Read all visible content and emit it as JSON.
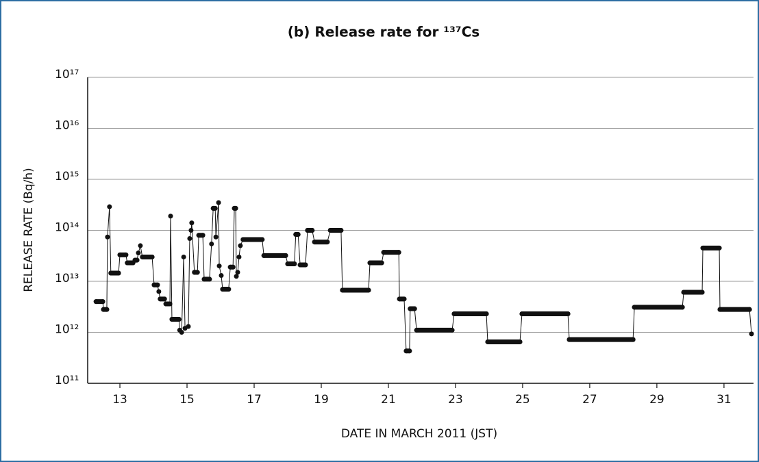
{
  "chart_data": {
    "type": "line",
    "title": "(b) Release rate for ¹³⁷Cs",
    "x_label": "DATE IN MARCH 2011 (JST)",
    "y_label": "RELEASE RATE (Bq/h)",
    "log_y": true,
    "grid": true,
    "xlim": [
      12.04,
      31.88
    ],
    "xticks": [
      13,
      15,
      17,
      19,
      21,
      23,
      25,
      27,
      29,
      31
    ],
    "ylim": [
      100000000000.0,
      1e+17
    ],
    "yticks": [
      {
        "value": 100000000000.0,
        "label": "10¹¹"
      },
      {
        "value": 1000000000000.0,
        "label": "10¹²"
      },
      {
        "value": 10000000000000.0,
        "label": "10¹³"
      },
      {
        "value": 100000000000000.0,
        "label": "10¹⁴"
      },
      {
        "value": 1000000000000000.0,
        "label": "10¹⁵"
      },
      {
        "value": 1e+16,
        "label": "10¹⁶"
      },
      {
        "value": 1e+17,
        "label": "10¹⁷"
      }
    ],
    "series": [
      {
        "color": "#111111",
        "x": [
          12.29,
          12.49,
          12.51,
          12.61,
          12.63,
          12.69,
          12.73,
          12.96,
          13.0,
          13.18,
          13.22,
          13.39,
          13.45,
          13.51,
          13.55,
          13.61,
          13.67,
          13.96,
          14.02,
          14.12,
          14.16,
          14.2,
          14.33,
          14.37,
          14.49,
          14.51,
          14.55,
          14.76,
          14.78,
          14.84,
          14.9,
          14.94,
          15.04,
          15.08,
          15.12,
          15.14,
          15.22,
          15.31,
          15.35,
          15.47,
          15.51,
          15.67,
          15.73,
          15.78,
          15.84,
          15.86,
          15.94,
          15.96,
          16.02,
          16.06,
          16.24,
          16.29,
          16.37,
          16.41,
          16.45,
          16.47,
          16.51,
          16.55,
          16.59,
          16.67,
          17.24,
          17.29,
          17.94,
          18.0,
          18.2,
          18.24,
          18.31,
          18.37,
          18.53,
          18.59,
          18.73,
          18.8,
          19.18,
          19.27,
          19.59,
          19.63,
          20.41,
          20.45,
          20.8,
          20.86,
          21.31,
          21.33,
          21.47,
          21.53,
          21.63,
          21.65,
          21.78,
          21.84,
          22.9,
          22.96,
          23.92,
          23.96,
          24.92,
          24.98,
          26.35,
          26.39,
          28.29,
          28.33,
          29.76,
          29.8,
          30.35,
          30.37,
          30.86,
          30.88,
          31.76,
          31.82
        ],
        "values": [
          4000000000000.0,
          4000000000000.0,
          2800000000000.0,
          2800000000000.0,
          74000000000000.0,
          290000000000000.0,
          14500000000000.0,
          14500000000000.0,
          33000000000000.0,
          33000000000000.0,
          23000000000000.0,
          23000000000000.0,
          26000000000000.0,
          26000000000000.0,
          36000000000000.0,
          50000000000000.0,
          30000000000000.0,
          30000000000000.0,
          8500000000000.0,
          8500000000000.0,
          6300000000000.0,
          4500000000000.0,
          4500000000000.0,
          3600000000000.0,
          3600000000000.0,
          190000000000000.0,
          1800000000000.0,
          1800000000000.0,
          1100000000000.0,
          1000000000000.0,
          30000000000000.0,
          1200000000000.0,
          1300000000000.0,
          69000000000000.0,
          100000000000000.0,
          140000000000000.0,
          15000000000000.0,
          15000000000000.0,
          80000000000000.0,
          80000000000000.0,
          11000000000000.0,
          11000000000000.0,
          54000000000000.0,
          270000000000000.0,
          270000000000000.0,
          74000000000000.0,
          350000000000000.0,
          20000000000000.0,
          13000000000000.0,
          7000000000000.0,
          7000000000000.0,
          19000000000000.0,
          19000000000000.0,
          270000000000000.0,
          270000000000000.0,
          12500000000000.0,
          15000000000000.0,
          30000000000000.0,
          50000000000000.0,
          66000000000000.0,
          66000000000000.0,
          32000000000000.0,
          32000000000000.0,
          22000000000000.0,
          22000000000000.0,
          83000000000000.0,
          83000000000000.0,
          21000000000000.0,
          21000000000000.0,
          100000000000000.0,
          100000000000000.0,
          59000000000000.0,
          59000000000000.0,
          100000000000000.0,
          100000000000000.0,
          6700000000000.0,
          6700000000000.0,
          23000000000000.0,
          23000000000000.0,
          37000000000000.0,
          37000000000000.0,
          4500000000000.0,
          4500000000000.0,
          430000000000.0,
          430000000000.0,
          2900000000000.0,
          2900000000000.0,
          1100000000000.0,
          1100000000000.0,
          2300000000000.0,
          2300000000000.0,
          650000000000.0,
          650000000000.0,
          2300000000000.0,
          2300000000000.0,
          720000000000.0,
          720000000000.0,
          3100000000000.0,
          3100000000000.0,
          6100000000000.0,
          6100000000000.0,
          45000000000000.0,
          45000000000000.0,
          2800000000000.0,
          2800000000000.0,
          930000000000.0
        ]
      }
    ]
  }
}
